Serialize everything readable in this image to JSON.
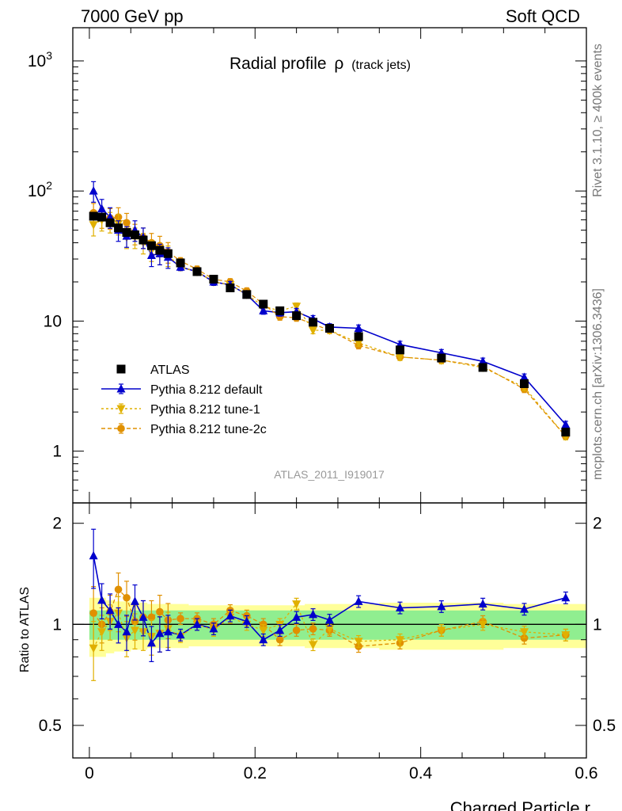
{
  "header": {
    "left": "7000 GeV pp",
    "right": "Soft QCD"
  },
  "side_labels": {
    "top": "Rivet 3.1.10, ≥ 400k events",
    "bottom": "mcplots.cern.ch [arXiv:1306.3436]"
  },
  "analysis_id": "ATLAS_2011_I919017",
  "colors": {
    "data": "#000000",
    "default": "#0000cc",
    "tune1": "#e0b000",
    "tune2c": "#e09000",
    "band_inner": "#90ee90",
    "band_outer": "#ffff99"
  },
  "chart_data": [
    {
      "type": "scatter",
      "panel": "main",
      "title": "Radial profile",
      "title_symbol": "ρ",
      "title_note": "(track jets)",
      "xlabel": "",
      "ylabel": "",
      "xlim": [
        -0.02,
        0.6
      ],
      "ylim": [
        0.4,
        1800
      ],
      "yscale": "log",
      "yticks": [
        {
          "value": 1000,
          "label": "10",
          "sup": "3"
        },
        {
          "value": 100,
          "label": "10",
          "sup": "2"
        },
        {
          "value": 10,
          "label": "10",
          "sup": ""
        },
        {
          "value": 1,
          "label": "1",
          "sup": ""
        }
      ],
      "x": [
        0.005,
        0.015,
        0.025,
        0.035,
        0.045,
        0.055,
        0.065,
        0.075,
        0.085,
        0.095,
        0.11,
        0.13,
        0.15,
        0.17,
        0.19,
        0.21,
        0.23,
        0.25,
        0.27,
        0.29,
        0.325,
        0.375,
        0.425,
        0.475,
        0.525,
        0.575
      ],
      "series": [
        {
          "name": "ATLAS",
          "marker": "square",
          "values": [
            64,
            63,
            57,
            52,
            48,
            46,
            42,
            38,
            35,
            33,
            28,
            24,
            21,
            18,
            16,
            13.5,
            12,
            11,
            9.8,
            8.8,
            7.6,
            6.0,
            5.2,
            4.4,
            3.3,
            1.4
          ]
        },
        {
          "name": "Pythia 8.212 default",
          "marker": "triangle-up",
          "values": [
            100,
            73,
            63,
            50,
            45,
            50,
            44,
            32,
            33,
            31,
            26,
            24,
            20,
            19,
            16,
            12,
            11.6,
            11.8,
            10.4,
            9.0,
            8.8,
            6.6,
            5.7,
            4.9,
            3.7,
            1.6
          ]
        },
        {
          "name": "Pythia 8.212 tune-1",
          "marker": "triangle-down",
          "values": [
            55,
            60,
            58,
            56,
            44,
            44,
            40,
            35,
            33,
            32,
            26,
            24,
            20,
            19,
            16,
            13,
            12,
            13,
            8.5,
            8.5,
            6.8,
            5.3,
            5.0,
            4.4,
            3.1,
            1.3
          ]
        },
        {
          "name": "Pythia 8.212 tune-2c",
          "marker": "circle",
          "values": [
            68,
            63,
            62,
            63,
            57,
            47,
            44,
            40,
            38,
            34,
            29,
            25,
            21,
            20,
            17,
            13.5,
            10.8,
            10.6,
            9.5,
            8.5,
            6.5,
            5.3,
            5.0,
            4.5,
            3.0,
            1.3
          ]
        }
      ],
      "legend": [
        "ATLAS",
        "Pythia 8.212 default",
        "Pythia 8.212 tune-1",
        "Pythia 8.212 tune-2c"
      ],
      "legend_position": "middle-left"
    },
    {
      "type": "scatter",
      "panel": "ratio",
      "xlabel": "Charged Particle r",
      "ylabel": "Ratio to ATLAS",
      "xlim": [
        -0.02,
        0.6
      ],
      "ylim": [
        0.4,
        2.3
      ],
      "yscale": "log",
      "yticks": [
        {
          "value": 2,
          "label": "2"
        },
        {
          "value": 1,
          "label": "1"
        },
        {
          "value": 0.5,
          "label": "0.5"
        }
      ],
      "xticks": [
        {
          "value": 0,
          "label": "0"
        },
        {
          "value": 0.2,
          "label": "0.2"
        },
        {
          "value": 0.4,
          "label": "0.4"
        },
        {
          "value": 0.6,
          "label": "0.6"
        }
      ],
      "x": [
        0.005,
        0.015,
        0.025,
        0.035,
        0.045,
        0.055,
        0.065,
        0.075,
        0.085,
        0.095,
        0.11,
        0.13,
        0.15,
        0.17,
        0.19,
        0.21,
        0.23,
        0.25,
        0.27,
        0.29,
        0.325,
        0.375,
        0.425,
        0.475,
        0.525,
        0.575
      ],
      "series": [
        {
          "name": "Pythia 8.212 default",
          "values": [
            1.6,
            1.18,
            1.1,
            1.0,
            0.95,
            1.17,
            1.05,
            0.88,
            0.94,
            0.95,
            0.93,
            1.0,
            0.97,
            1.06,
            1.02,
            0.9,
            0.96,
            1.05,
            1.07,
            1.03,
            1.17,
            1.12,
            1.13,
            1.15,
            1.11,
            1.2
          ]
        },
        {
          "name": "Pythia 8.212 tune-1",
          "values": [
            0.85,
            0.95,
            1.02,
            1.08,
            0.91,
            0.96,
            0.95,
            0.92,
            0.94,
            0.97,
            0.92,
            1.0,
            0.96,
            1.05,
            1.0,
            0.96,
            1.0,
            1.15,
            0.87,
            0.97,
            0.89,
            0.9,
            0.96,
            1.0,
            0.95,
            0.93
          ]
        },
        {
          "name": "Pythia 8.212 tune-2c",
          "values": [
            1.08,
            1.0,
            1.09,
            1.27,
            1.2,
            1.02,
            1.05,
            1.05,
            1.09,
            1.03,
            1.04,
            1.04,
            1.0,
            1.1,
            1.06,
            1.0,
            0.9,
            0.96,
            0.97,
            0.96,
            0.86,
            0.88,
            0.96,
            1.02,
            0.91,
            0.93
          ]
        }
      ],
      "bands": {
        "inner": [
          0.1,
          0.1,
          0.1,
          0.1,
          0.1,
          0.1,
          0.1,
          0.1,
          0.1,
          0.1,
          0.1,
          0.1,
          0.1,
          0.1,
          0.1,
          0.1,
          0.1,
          0.1,
          0.1,
          0.1,
          0.1,
          0.1,
          0.1,
          0.1,
          0.1,
          0.1
        ],
        "outer": [
          0.2,
          0.2,
          0.18,
          0.17,
          0.17,
          0.16,
          0.16,
          0.15,
          0.15,
          0.15,
          0.15,
          0.14,
          0.14,
          0.14,
          0.14,
          0.14,
          0.14,
          0.14,
          0.15,
          0.15,
          0.15,
          0.16,
          0.16,
          0.16,
          0.15,
          0.15
        ]
      }
    }
  ]
}
